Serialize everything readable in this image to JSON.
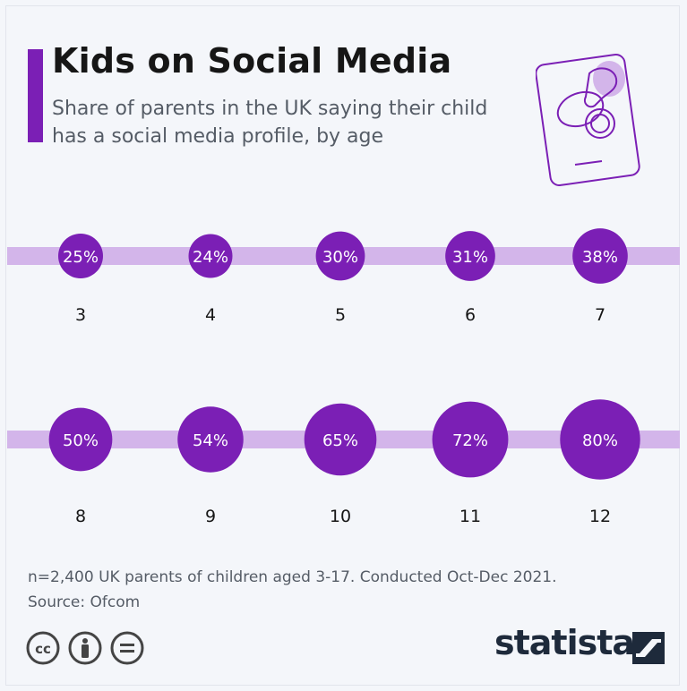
{
  "header": {
    "title": "Kids on Social Media",
    "subtitle": "Share of parents in the UK saying their child has a social media profile, by age"
  },
  "chart_data": {
    "type": "bubble",
    "series": [
      {
        "values": [
          25,
          24,
          30,
          31,
          38,
          50,
          54,
          65,
          72,
          80
        ],
        "labels": [
          "25%",
          "24%",
          "30%",
          "31%",
          "38%",
          "50%",
          "54%",
          "65%",
          "72%",
          "80%"
        ]
      }
    ],
    "categories": [
      "3",
      "4",
      "5",
      "6",
      "7",
      "8",
      "9",
      "10",
      "11",
      "12"
    ],
    "value_unit": "%",
    "rows": 2
  },
  "footer": {
    "note": "n=2,400 UK parents of children aged 3-17. Conducted Oct-Dec 2021.",
    "source": "Source: Ofcom",
    "logo_text": "statista"
  },
  "colors": {
    "accent": "#7b1fb5",
    "band": "#d3b5ea",
    "text": "#161616",
    "muted": "#555c66",
    "logo": "#1e2a3b"
  },
  "icons": [
    "cc-icon",
    "attribution-icon",
    "no-derivatives-icon",
    "statista-logo-icon",
    "phone-pacifier-icon"
  ]
}
